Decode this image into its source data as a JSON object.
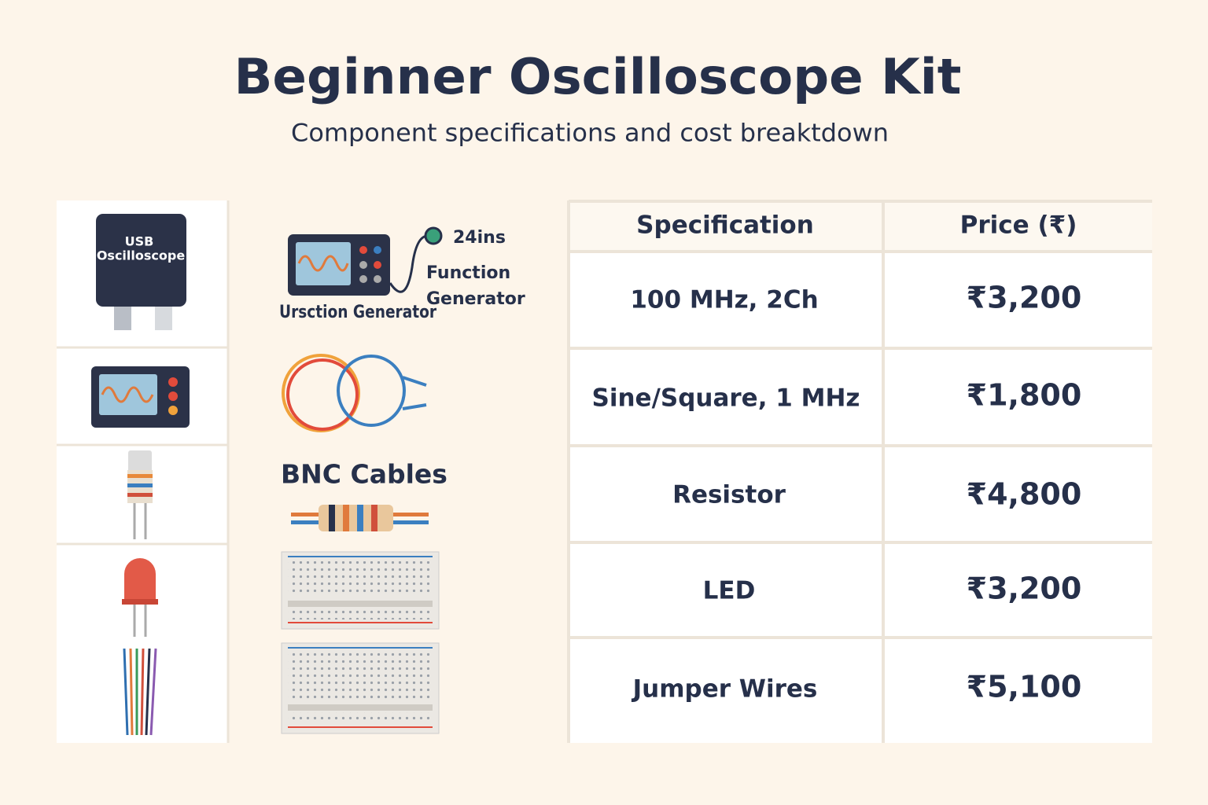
{
  "header": {
    "title": "Beginner Oscilloscope Kit",
    "subtitle": "Component specifications and cost breaktdown"
  },
  "illustrations": {
    "usb_oscilloscope": [
      "USB",
      "Oscilloscope"
    ],
    "function_generator": {
      "size_label": "24ins",
      "name": [
        "Function",
        "Generator"
      ],
      "caption": "Ursction Generator"
    },
    "bnc_label": "BNC Cables"
  },
  "table": {
    "columns": [
      "Specification",
      "Price (₹)"
    ],
    "rows": [
      [
        "100 MHz, 2Ch",
        "₹3,200"
      ],
      [
        "Sine/Square, 1 MHz",
        "₹1,800"
      ],
      [
        "Resistor",
        "₹4,800"
      ],
      [
        "LED",
        "₹3,200"
      ],
      [
        "Jumper Wires",
        "₹5,100"
      ]
    ]
  }
}
